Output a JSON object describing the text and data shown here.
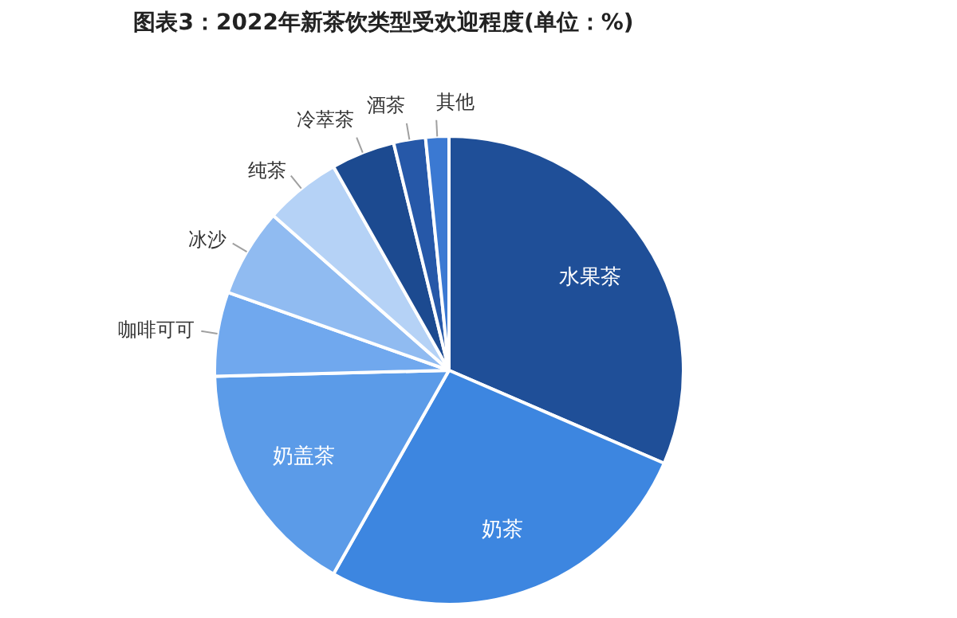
{
  "chart_data": {
    "type": "pie",
    "title": "图表3：2022年新茶饮类型受欢迎程度(单位：%)",
    "categories": [
      "水果茶",
      "奶茶",
      "奶盖茶",
      "咖啡可可",
      "冰沙",
      "纯茶",
      "冷萃茶",
      "酒茶",
      "其他"
    ],
    "values": [
      31.5,
      26.7,
      16.4,
      5.8,
      6.1,
      5.3,
      4.4,
      2.2,
      1.6
    ],
    "colors": [
      "#1f4f98",
      "#3d86e0",
      "#5b9be8",
      "#70a8ee",
      "#90bbf1",
      "#b5d2f6",
      "#1c4a90",
      "#2658a8",
      "#3b79d2"
    ],
    "legend": false
  }
}
